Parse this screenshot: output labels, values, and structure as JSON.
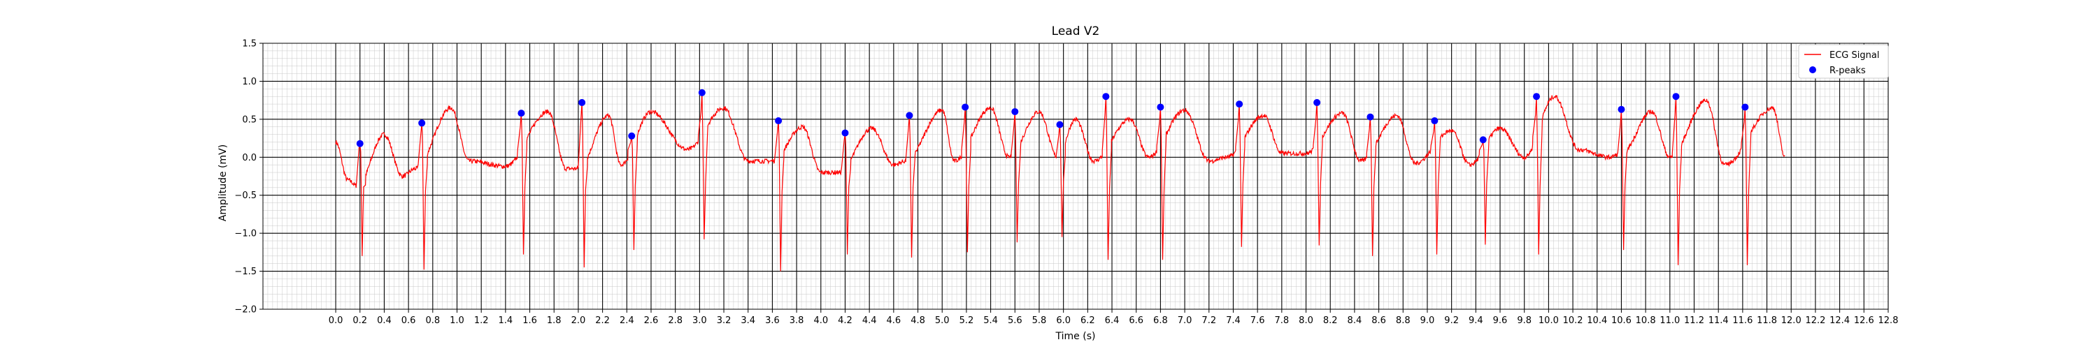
{
  "chart_data": {
    "type": "line",
    "title": "Lead V2",
    "xlabel": "Time (s)",
    "ylabel": "Amplitude (mV)",
    "xlim": [
      -0.6,
      12.8
    ],
    "ylim": [
      -2.0,
      1.5
    ],
    "xticks": [
      "0.0",
      "0.2",
      "0.4",
      "0.6",
      "0.8",
      "1.0",
      "1.2",
      "1.4",
      "1.6",
      "1.8",
      "2.0",
      "2.2",
      "2.4",
      "2.6",
      "2.8",
      "3.0",
      "3.2",
      "3.4",
      "3.6",
      "3.8",
      "4.0",
      "4.2",
      "4.4",
      "4.6",
      "4.8",
      "5.0",
      "5.2",
      "5.4",
      "5.6",
      "5.8",
      "6.0",
      "6.2",
      "6.4",
      "6.6",
      "6.8",
      "7.0",
      "7.2",
      "7.4",
      "7.6",
      "7.8",
      "8.0",
      "8.2",
      "8.4",
      "8.6",
      "8.8",
      "9.0",
      "9.2",
      "9.4",
      "9.6",
      "9.8",
      "10.0",
      "10.2",
      "10.4",
      "10.6",
      "10.8",
      "11.0",
      "11.2",
      "11.4",
      "11.6",
      "11.8",
      "12.0",
      "12.2",
      "12.4",
      "12.6",
      "12.8"
    ],
    "yticks": [
      "1.5",
      "1.0",
      "0.5",
      "0.0",
      "−0.5",
      "−1.0",
      "−1.5",
      "−2.0"
    ],
    "grid": true,
    "legend_position": "top-right",
    "colors": {
      "signal": "#ff0000",
      "peaks": "#0000ff",
      "major_grid": "#000000",
      "minor_grid": "#c8c8c8"
    },
    "series": [
      {
        "name": "ECG Signal",
        "kind": "line",
        "baseline_segments": [
          [
            0.0,
            0.2
          ],
          [
            0.1,
            -0.3
          ],
          [
            0.18,
            -0.38
          ],
          [
            0.4,
            0.3
          ],
          [
            0.55,
            -0.25
          ],
          [
            0.66,
            -0.15
          ],
          [
            0.95,
            0.65
          ],
          [
            1.1,
            -0.05
          ],
          [
            1.4,
            -0.12
          ],
          [
            1.75,
            0.6
          ],
          [
            1.9,
            -0.15
          ],
          [
            2.0,
            -0.15
          ],
          [
            2.25,
            0.55
          ],
          [
            2.35,
            -0.1
          ],
          [
            2.6,
            0.6
          ],
          [
            2.9,
            0.1
          ],
          [
            3.2,
            0.65
          ],
          [
            3.4,
            -0.05
          ],
          [
            3.6,
            -0.05
          ],
          [
            3.85,
            0.4
          ],
          [
            4.0,
            -0.2
          ],
          [
            4.15,
            -0.2
          ],
          [
            4.42,
            0.38
          ],
          [
            4.6,
            -0.1
          ],
          [
            4.7,
            -0.05
          ],
          [
            5.0,
            0.62
          ],
          [
            5.1,
            -0.05
          ],
          [
            5.4,
            0.65
          ],
          [
            5.55,
            0.0
          ],
          [
            5.8,
            0.6
          ],
          [
            5.95,
            0.0
          ],
          [
            6.1,
            0.5
          ],
          [
            6.25,
            -0.05
          ],
          [
            6.55,
            0.5
          ],
          [
            6.7,
            0.0
          ],
          [
            7.0,
            0.62
          ],
          [
            7.2,
            -0.05
          ],
          [
            7.35,
            0.0
          ],
          [
            7.65,
            0.55
          ],
          [
            7.8,
            0.05
          ],
          [
            8.0,
            0.05
          ],
          [
            8.3,
            0.58
          ],
          [
            8.45,
            -0.05
          ],
          [
            8.75,
            0.55
          ],
          [
            8.9,
            -0.08
          ],
          [
            9.2,
            0.35
          ],
          [
            9.35,
            -0.1
          ],
          [
            9.6,
            0.38
          ],
          [
            9.8,
            0.0
          ],
          [
            10.05,
            0.8
          ],
          [
            10.25,
            0.1
          ],
          [
            10.5,
            0.0
          ],
          [
            10.6,
            0.05
          ],
          [
            10.85,
            0.6
          ],
          [
            11.0,
            0.0
          ],
          [
            11.3,
            0.75
          ],
          [
            11.45,
            -0.1
          ],
          [
            11.85,
            0.65
          ],
          [
            11.95,
            0.0
          ]
        ],
        "qrs_complexes": [
          {
            "r_time": 0.2,
            "r": 0.18,
            "s": -1.3
          },
          {
            "r_time": 0.71,
            "r": 0.45,
            "s": -1.48
          },
          {
            "r_time": 1.53,
            "r": 0.58,
            "s": -1.28
          },
          {
            "r_time": 2.03,
            "r": 0.72,
            "s": -1.45
          },
          {
            "r_time": 2.44,
            "r": 0.28,
            "s": -1.22
          },
          {
            "r_time": 3.02,
            "r": 0.85,
            "s": -1.08
          },
          {
            "r_time": 3.65,
            "r": 0.48,
            "s": -1.5
          },
          {
            "r_time": 4.2,
            "r": 0.32,
            "s": -1.28
          },
          {
            "r_time": 4.73,
            "r": 0.55,
            "s": -1.32
          },
          {
            "r_time": 5.19,
            "r": 0.66,
            "s": -1.25
          },
          {
            "r_time": 5.6,
            "r": 0.6,
            "s": -1.12
          },
          {
            "r_time": 5.97,
            "r": 0.43,
            "s": -1.05
          },
          {
            "r_time": 6.35,
            "r": 0.8,
            "s": -1.35
          },
          {
            "r_time": 6.8,
            "r": 0.66,
            "s": -1.35
          },
          {
            "r_time": 7.45,
            "r": 0.7,
            "s": -1.18
          },
          {
            "r_time": 8.09,
            "r": 0.72,
            "s": -1.16
          },
          {
            "r_time": 8.53,
            "r": 0.53,
            "s": -1.3
          },
          {
            "r_time": 9.06,
            "r": 0.48,
            "s": -1.28
          },
          {
            "r_time": 9.46,
            "r": 0.23,
            "s": -1.15
          },
          {
            "r_time": 9.9,
            "r": 0.8,
            "s": -1.28
          },
          {
            "r_time": 10.6,
            "r": 0.63,
            "s": -1.22
          },
          {
            "r_time": 11.05,
            "r": 0.8,
            "s": -1.42
          },
          {
            "r_time": 11.62,
            "r": 0.66,
            "s": -1.42
          }
        ]
      },
      {
        "name": "R-peaks",
        "kind": "scatter",
        "x": [
          0.2,
          0.71,
          1.53,
          2.03,
          2.44,
          3.02,
          3.65,
          4.2,
          4.73,
          5.19,
          5.6,
          5.97,
          6.35,
          6.8,
          7.45,
          8.09,
          8.53,
          9.06,
          9.46,
          9.9,
          10.6,
          11.05,
          11.62
        ],
        "y": [
          0.18,
          0.45,
          0.58,
          0.72,
          0.28,
          0.85,
          0.48,
          0.32,
          0.55,
          0.66,
          0.6,
          0.43,
          0.8,
          0.66,
          0.7,
          0.72,
          0.53,
          0.48,
          0.23,
          0.8,
          0.63,
          0.8,
          0.66
        ]
      }
    ]
  }
}
